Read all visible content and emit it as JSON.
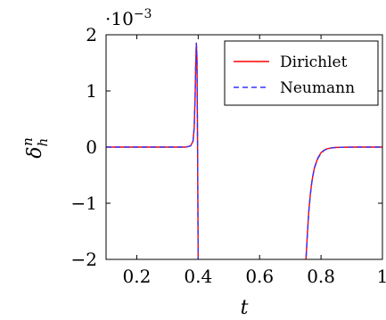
{
  "chart_data": {
    "type": "line",
    "xlabel": "t",
    "ylabel_main": "δ",
    "ylabel_sub": "h",
    "ylabel_sup": "n",
    "y_multiplier": {
      "base": "·10",
      "exponent": "−3"
    },
    "xlim": [
      0.1,
      1.0
    ],
    "ylim": [
      -2,
      2
    ],
    "x_ticks": [
      0.2,
      0.4,
      0.6,
      0.8,
      1.0
    ],
    "x_tick_labels": [
      "0.2",
      "0.4",
      "0.6",
      "0.8",
      "1"
    ],
    "y_ticks": [
      -2,
      -1,
      0,
      1,
      2
    ],
    "y_tick_labels": [
      "−2",
      "−1",
      "0",
      "1",
      "2"
    ],
    "grid": false,
    "legend_position": "top-right",
    "series": [
      {
        "name": "Dirichlet",
        "color": "#ff0000",
        "dash": "solid",
        "x": [
          0.1,
          0.2,
          0.3,
          0.36,
          0.375,
          0.383,
          0.387,
          0.39,
          0.392,
          0.394,
          0.396,
          0.398,
          0.4,
          0.401,
          0.403,
          0.405,
          0.75,
          0.755,
          0.76,
          0.765,
          0.77,
          0.775,
          0.78,
          0.79,
          0.8,
          0.81,
          0.82,
          0.835,
          0.85,
          0.88,
          0.92,
          1.0
        ],
        "y": [
          0,
          0,
          0,
          0,
          0.02,
          0.1,
          0.35,
          0.9,
          1.5,
          1.85,
          1.6,
          0.0,
          -2.1,
          -2.1,
          -2.1,
          -2.1,
          -2.1,
          -1.6,
          -1.15,
          -0.85,
          -0.62,
          -0.46,
          -0.34,
          -0.19,
          -0.1,
          -0.055,
          -0.03,
          -0.012,
          -0.006,
          -0.002,
          0,
          0
        ]
      },
      {
        "name": "Neumann",
        "color": "#3333ff",
        "dash": "dashed",
        "x": [
          0.1,
          0.2,
          0.3,
          0.36,
          0.375,
          0.383,
          0.387,
          0.39,
          0.392,
          0.394,
          0.396,
          0.398,
          0.4,
          0.401,
          0.403,
          0.405,
          0.75,
          0.755,
          0.76,
          0.765,
          0.77,
          0.775,
          0.78,
          0.79,
          0.8,
          0.81,
          0.82,
          0.835,
          0.85,
          0.88,
          0.92,
          1.0
        ],
        "y": [
          0,
          0,
          0,
          0,
          0.02,
          0.1,
          0.35,
          0.9,
          1.5,
          1.85,
          1.6,
          0.0,
          -2.1,
          -2.1,
          -2.1,
          -2.1,
          -2.1,
          -1.62,
          -1.17,
          -0.86,
          -0.63,
          -0.47,
          -0.35,
          -0.2,
          -0.11,
          -0.06,
          -0.033,
          -0.014,
          -0.007,
          -0.002,
          0,
          0
        ]
      }
    ]
  }
}
